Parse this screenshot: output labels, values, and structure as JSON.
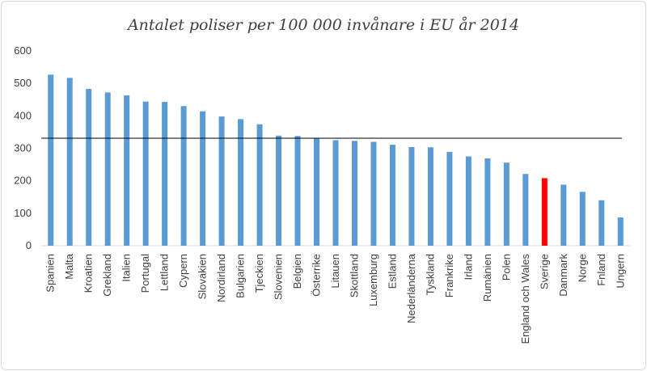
{
  "chart_data": {
    "type": "bar",
    "title": "Antalet poliser per 100 000 invånare i EU år 2014",
    "xlabel": "",
    "ylabel": "",
    "ylim": [
      0,
      600
    ],
    "yticks": [
      0,
      100,
      200,
      300,
      400,
      500,
      600
    ],
    "grid": false,
    "categories": [
      "Spanien",
      "Malta",
      "Kroatien",
      "Grekland",
      "Italien",
      "Portugal",
      "Lettland",
      "Cypern",
      "Slovakien",
      "Nordirland",
      "Bulgarien",
      "Tjeckien",
      "Slovenien",
      "Belgien",
      "Österrike",
      "Litauen",
      "Skottland",
      "Luxemburg",
      "Estland",
      "Nederländerna",
      "Tyskland",
      "Frankrike",
      "Irland",
      "Rumänien",
      "Polen",
      "England och Wales",
      "Sverige",
      "Danmark",
      "Norge",
      "Fnland",
      "Ungern"
    ],
    "values": [
      527,
      517,
      483,
      472,
      463,
      444,
      443,
      430,
      414,
      398,
      390,
      374,
      339,
      338,
      330,
      325,
      323,
      320,
      311,
      304,
      303,
      289,
      275,
      269,
      256,
      221,
      208,
      188,
      166,
      140,
      87
    ],
    "highlight_category": "Sverige",
    "reference_line": 331,
    "colors": {
      "bar": "#5b9bd5",
      "highlight": "#ff0000",
      "reference_line": "#000000",
      "axis": "#d9d9d9"
    }
  }
}
